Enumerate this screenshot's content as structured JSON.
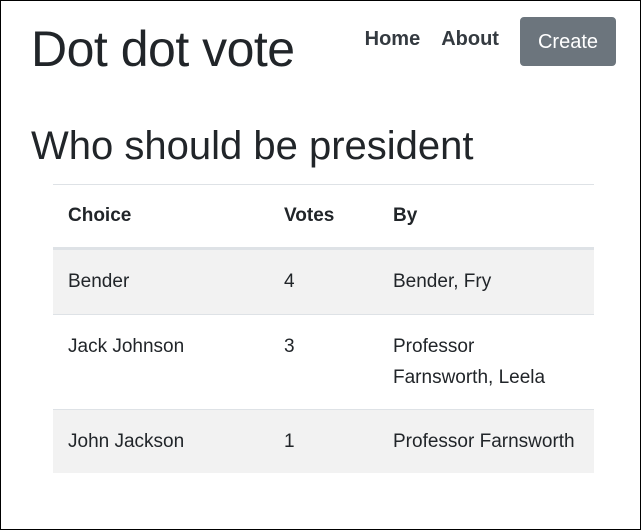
{
  "header": {
    "site_title": "Dot dot vote",
    "nav": {
      "home": "Home",
      "about": "About",
      "create": "Create"
    }
  },
  "poll": {
    "title": "Who should be president",
    "columns": [
      "Choice",
      "Votes",
      "By"
    ],
    "rows": [
      {
        "choice": "Bender",
        "votes": "4",
        "by": "Bender, Fry"
      },
      {
        "choice": "Jack Johnson",
        "votes": "3",
        "by": "Professor Farnsworth, Leela"
      },
      {
        "choice": "John Jackson",
        "votes": "1",
        "by": "Professor Farnsworth"
      }
    ]
  },
  "colors": {
    "text": "#212529",
    "button_bg": "#6c757d",
    "stripe": "#f2f2f2",
    "border": "#dee2e6"
  }
}
